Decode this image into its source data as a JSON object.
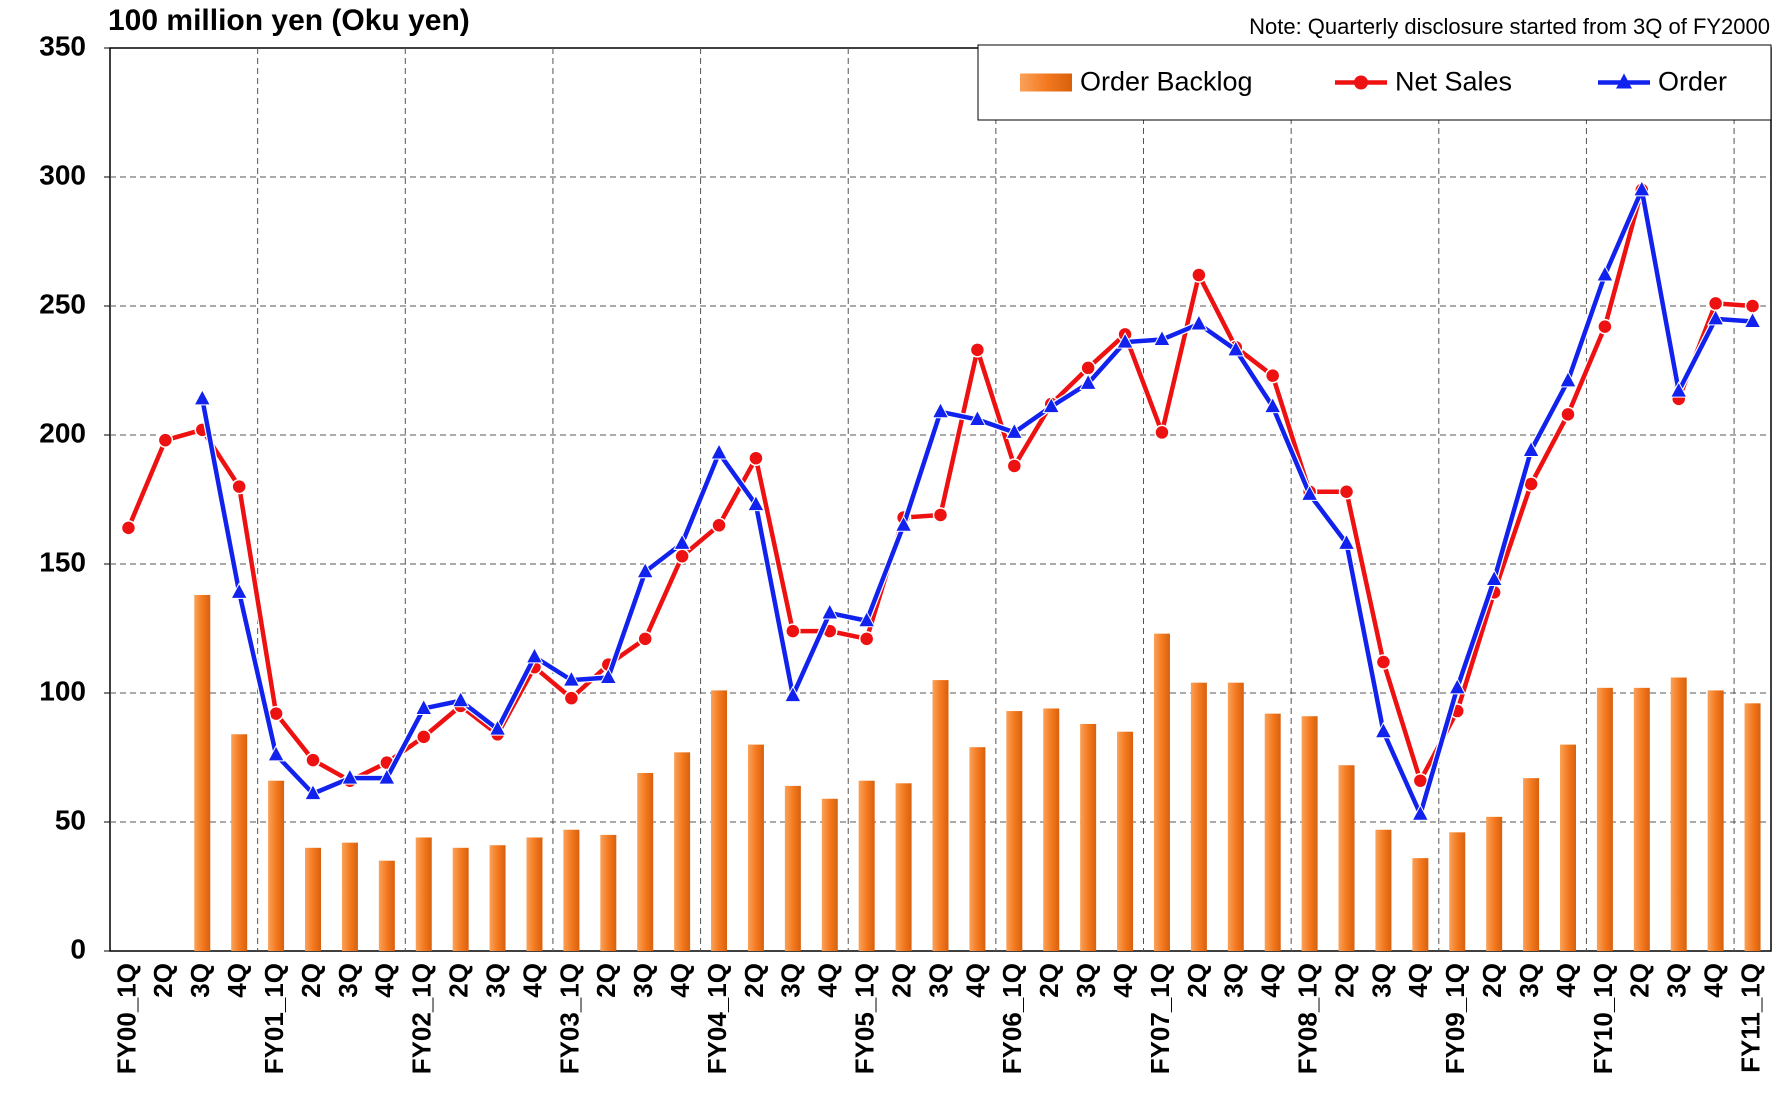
{
  "chart_data": {
    "type": "bar_line",
    "title": "100 million yen (Oku yen)",
    "note": "Note: Quarterly disclosure started from 3Q of FY2000",
    "categories": [
      "FY00_1Q",
      "2Q",
      "3Q",
      "4Q",
      "FY01_1Q",
      "2Q",
      "3Q",
      "4Q",
      "FY02_1Q",
      "2Q",
      "3Q",
      "4Q",
      "FY03_1Q",
      "2Q",
      "3Q",
      "4Q",
      "FY04_1Q",
      "2Q",
      "3Q",
      "4Q",
      "FY05_1Q",
      "2Q",
      "3Q",
      "4Q",
      "FY06_1Q",
      "2Q",
      "3Q",
      "4Q",
      "FY07_1Q",
      "2Q",
      "3Q",
      "4Q",
      "FY08_1Q",
      "2Q",
      "3Q",
      "4Q",
      "FY09_1Q",
      "2Q",
      "3Q",
      "4Q",
      "FY10_1Q",
      "2Q",
      "3Q",
      "4Q",
      "FY11_1Q"
    ],
    "series": [
      {
        "name": "Order Backlog",
        "type": "bar",
        "color": "#f47a20",
        "values": [
          null,
          null,
          138,
          84,
          66,
          40,
          42,
          35,
          44,
          40,
          41,
          44,
          47,
          45,
          69,
          77,
          101,
          80,
          64,
          59,
          66,
          65,
          105,
          79,
          93,
          94,
          88,
          85,
          123,
          104,
          104,
          92,
          91,
          72,
          47,
          36,
          46,
          52,
          67,
          80,
          102,
          102,
          106,
          101,
          96
        ]
      },
      {
        "name": "Net Sales",
        "type": "line",
        "marker": "circle",
        "color": "#ee1111",
        "values": [
          164,
          198,
          202,
          180,
          92,
          74,
          66,
          73,
          83,
          95,
          84,
          110,
          98,
          111,
          121,
          153,
          165,
          191,
          124,
          124,
          121,
          168,
          169,
          233,
          188,
          212,
          226,
          239,
          201,
          262,
          234,
          223,
          178,
          178,
          112,
          66,
          93,
          139,
          181,
          208,
          242,
          295,
          214,
          251,
          250
        ]
      },
      {
        "name": "Order",
        "type": "line",
        "marker": "triangle",
        "color": "#1122ee",
        "values": [
          null,
          null,
          214,
          139,
          76,
          61,
          67,
          67,
          94,
          97,
          86,
          114,
          105,
          106,
          147,
          158,
          193,
          173,
          99,
          131,
          128,
          165,
          209,
          206,
          201,
          211,
          220,
          236,
          237,
          243,
          233,
          211,
          177,
          158,
          85,
          53,
          102,
          144,
          194,
          221,
          262,
          295,
          217,
          245,
          244
        ]
      }
    ],
    "ylim": [
      0,
      350
    ],
    "yticks": [
      0,
      50,
      100,
      150,
      200,
      250,
      300,
      350
    ],
    "grid": true,
    "legend": "top-right"
  }
}
